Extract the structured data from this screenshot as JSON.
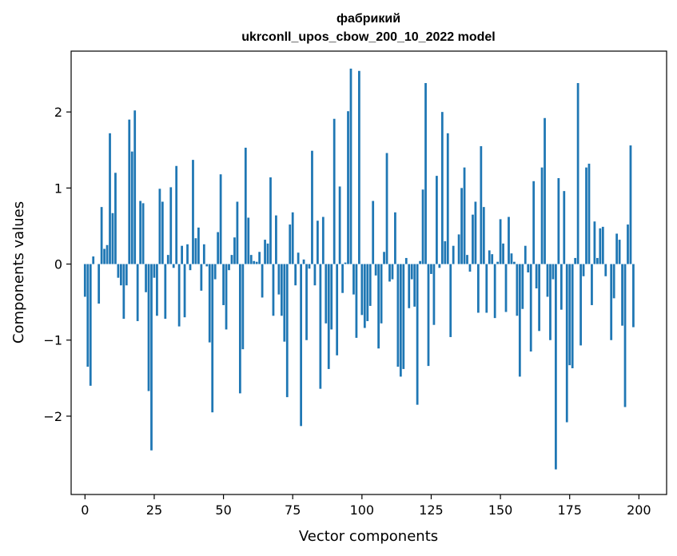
{
  "chart_data": {
    "type": "bar",
    "title": "фабрикий",
    "subtitle": "ukrconll_upos_cbow_200_10_2022 model",
    "xlabel": "Vector components",
    "ylabel": "Components values",
    "xlim": [
      -5,
      210
    ],
    "ylim": [
      -3.03,
      2.8
    ],
    "xticks": [
      0,
      25,
      50,
      75,
      100,
      125,
      150,
      175,
      200
    ],
    "xtick_labels": [
      "0",
      "25",
      "50",
      "75",
      "100",
      "125",
      "150",
      "175",
      "200"
    ],
    "yticks": [
      -2,
      -1,
      0,
      1,
      2
    ],
    "ytick_labels": [
      "−2",
      "−1",
      "0",
      "1",
      "2"
    ],
    "bar_color": "#1f77b4",
    "values": [
      -0.43,
      -1.35,
      -1.6,
      0.1,
      0.0,
      -0.52,
      0.75,
      0.2,
      0.25,
      1.72,
      0.67,
      1.2,
      -0.18,
      -0.28,
      -0.72,
      -0.28,
      1.9,
      1.48,
      2.02,
      -0.75,
      0.83,
      0.8,
      -0.37,
      -1.67,
      -2.45,
      -0.18,
      -0.68,
      0.99,
      0.82,
      -0.72,
      0.12,
      1.01,
      -0.05,
      1.29,
      -0.82,
      0.24,
      -0.7,
      0.26,
      -0.08,
      1.37,
      0.34,
      0.48,
      -0.35,
      0.26,
      -0.03,
      -1.03,
      -1.95,
      -0.2,
      0.42,
      1.18,
      -0.54,
      -0.86,
      -0.08,
      0.12,
      0.35,
      0.82,
      -1.7,
      -1.12,
      1.53,
      0.61,
      0.12,
      0.04,
      0.03,
      0.16,
      -0.44,
      0.32,
      0.27,
      1.14,
      -0.68,
      0.64,
      -0.4,
      -0.68,
      -1.02,
      -1.75,
      0.52,
      0.68,
      -0.28,
      0.15,
      -2.13,
      0.06,
      -1.0,
      -0.06,
      1.49,
      -0.28,
      0.57,
      -1.64,
      0.62,
      -0.78,
      -1.38,
      -0.86,
      1.91,
      -1.2,
      1.02,
      -0.38,
      0.02,
      2.01,
      2.57,
      -0.4,
      -0.97,
      2.54,
      -0.67,
      -0.84,
      -0.75,
      -0.55,
      0.83,
      -0.15,
      -1.11,
      -0.78,
      0.16,
      1.46,
      -0.23,
      -0.2,
      0.68,
      -1.35,
      -1.48,
      -1.38,
      0.08,
      -0.58,
      -0.2,
      -0.56,
      -1.85,
      0.04,
      0.98,
      2.38,
      -1.34,
      -0.13,
      -0.8,
      1.16,
      -0.05,
      2.0,
      0.3,
      1.72,
      -0.96,
      0.24,
      0.0,
      0.39,
      1.0,
      1.27,
      0.12,
      -0.1,
      0.65,
      0.82,
      -0.64,
      1.55,
      0.75,
      -0.64,
      0.18,
      0.13,
      -0.71,
      0.03,
      0.59,
      0.27,
      -0.63,
      0.62,
      0.14,
      0.03,
      -0.68,
      -1.48,
      -0.59,
      0.24,
      -0.11,
      -1.15,
      1.09,
      -0.32,
      -0.88,
      1.27,
      1.92,
      -0.43,
      -1.0,
      -0.2,
      -2.7,
      1.13,
      -0.6,
      0.96,
      -2.08,
      -1.33,
      -1.37,
      0.08,
      2.38,
      -1.07,
      -0.16,
      1.27,
      1.32,
      -0.54,
      0.56,
      0.08,
      0.47,
      0.49,
      -0.16,
      0.0,
      -1.0,
      -0.45,
      0.4,
      0.32,
      -0.81,
      -1.88,
      0.52,
      1.56,
      -0.83
    ]
  }
}
